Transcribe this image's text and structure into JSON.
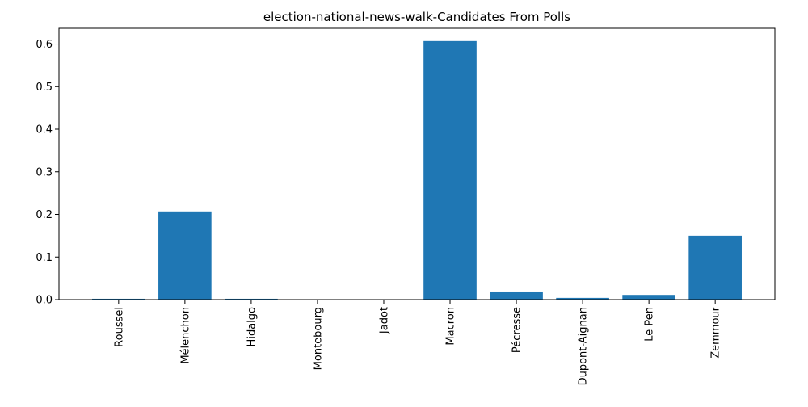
{
  "chart_data": {
    "type": "bar",
    "title": "election-national-news-walk-Candidates From Polls",
    "xlabel": "",
    "ylabel": "",
    "categories": [
      "Roussel",
      "Mélenchon",
      "Hidalgo",
      "Montebourg",
      "Jadot",
      "Macron",
      "Pécresse",
      "Dupont-Aignan",
      "Le Pen",
      "Zemmour"
    ],
    "values": [
      0.002,
      0.207,
      0.002,
      0.0,
      0.0,
      0.607,
      0.019,
      0.004,
      0.011,
      0.15
    ],
    "ylim": [
      0,
      0.637
    ],
    "yticks": [
      0.0,
      0.1,
      0.2,
      0.3,
      0.4,
      0.5,
      0.6
    ],
    "ytick_labels": [
      "0.0",
      "0.1",
      "0.2",
      "0.3",
      "0.4",
      "0.5",
      "0.6"
    ],
    "grid": false,
    "legend": "none",
    "bar_color": "#1f77b4"
  }
}
